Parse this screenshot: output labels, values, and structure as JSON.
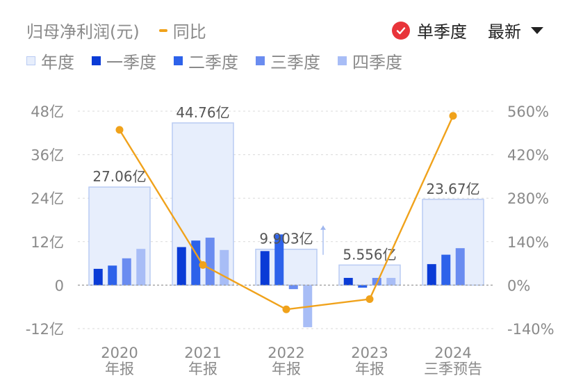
{
  "header": {
    "title": "归母净利润(元)",
    "yoy_label": "同比",
    "mode_label": "单季度",
    "sort_label": "最新"
  },
  "legend": [
    {
      "label": "年度",
      "color": "#e7eefc",
      "border": "#b9cbf3"
    },
    {
      "label": "一季度",
      "color": "#0a3bd6"
    },
    {
      "label": "二季度",
      "color": "#2d62ea"
    },
    {
      "label": "三季度",
      "color": "#6a8cf0"
    },
    {
      "label": "四季度",
      "color": "#a8bdf6"
    }
  ],
  "colors": {
    "line": "#f0a21b",
    "check": "#e8343a",
    "grid": "#d9d9d9",
    "zero": "#9a9a9a",
    "axis_text": "#8a8a8a"
  },
  "chart_data": {
    "type": "bar",
    "categories": [
      "2020\n年报",
      "2021\n年报",
      "2022\n年报",
      "2023\n年报",
      "2024\n三季预告"
    ],
    "annual": [
      27.06,
      44.76,
      9.903,
      5.556,
      23.67
    ],
    "annual_labels": [
      "27.06亿",
      "44.76亿",
      "9.903亿",
      "5.556亿",
      "23.67亿"
    ],
    "series": [
      {
        "name": "一季度",
        "values": [
          4.5,
          10.5,
          9.4,
          2.0,
          5.8
        ]
      },
      {
        "name": "二季度",
        "values": [
          5.4,
          12.3,
          14.0,
          -0.7,
          8.4
        ]
      },
      {
        "name": "三季度",
        "values": [
          7.4,
          13.1,
          -1.1,
          2.0,
          10.2
        ]
      },
      {
        "name": "四季度",
        "values": [
          10.0,
          9.7,
          -11.6,
          2.0,
          null
        ]
      }
    ],
    "yoy": [
      500,
      65,
      -78,
      -45,
      545
    ],
    "ylim": [
      -12,
      48
    ],
    "yticks": [
      -12,
      0,
      12,
      24,
      36,
      48
    ],
    "ytick_labels": [
      "-12亿",
      "0",
      "12亿",
      "24亿",
      "36亿",
      "48亿"
    ],
    "y2lim": [
      -140,
      560
    ],
    "y2ticks": [
      -140,
      0,
      140,
      280,
      420,
      560
    ],
    "y2tick_labels": [
      "-140%",
      "0%",
      "140%",
      "280%",
      "420%",
      "560%"
    ],
    "grid": true
  }
}
